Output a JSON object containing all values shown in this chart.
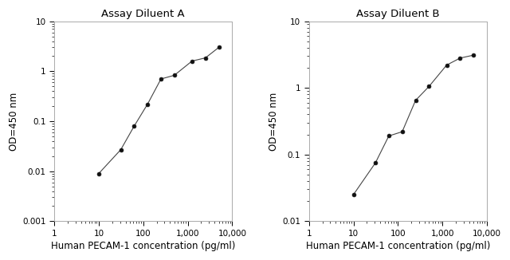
{
  "panel_A": {
    "title": "Assay Diluent A",
    "x": [
      10,
      31.25,
      62.5,
      125,
      250,
      500,
      1250,
      2500,
      5000
    ],
    "y": [
      0.009,
      0.027,
      0.08,
      0.22,
      0.7,
      0.83,
      1.6,
      1.85,
      3.0
    ],
    "xlim_log": [
      0,
      4
    ],
    "ylim": [
      0.001,
      10
    ],
    "yticks": [
      0.001,
      0.01,
      0.1,
      1,
      10
    ],
    "ytick_labels": [
      "0.001",
      "0.01",
      "0.1",
      "1",
      "10"
    ],
    "xlabel": "Human PECAM-1 concentration (pg/ml)",
    "ylabel": "OD=450 nm"
  },
  "panel_B": {
    "title": "Assay Diluent B",
    "x": [
      10,
      31.25,
      62.5,
      125,
      250,
      500,
      1250,
      2500,
      5000
    ],
    "y": [
      0.025,
      0.075,
      0.19,
      0.22,
      0.65,
      1.05,
      2.2,
      2.8,
      3.1
    ],
    "xlim_log": [
      0,
      4
    ],
    "ylim": [
      0.01,
      10
    ],
    "yticks": [
      0.01,
      0.1,
      1,
      10
    ],
    "ytick_labels": [
      "0.01",
      "0.1",
      "1",
      "10"
    ],
    "xlabel": "Human PECAM-1 concentration (pg/ml)",
    "ylabel": "OD=450 nm"
  },
  "xticks": [
    1,
    10,
    100,
    1000,
    10000
  ],
  "xtick_labels": [
    "1",
    "10",
    "100",
    "1,000",
    "10,000"
  ],
  "xlim": [
    1,
    10000
  ],
  "line_color": "#444444",
  "marker_color": "#111111",
  "background_color": "#ffffff",
  "title_fontsize": 9.5,
  "label_fontsize": 8.5,
  "tick_fontsize": 7.5
}
